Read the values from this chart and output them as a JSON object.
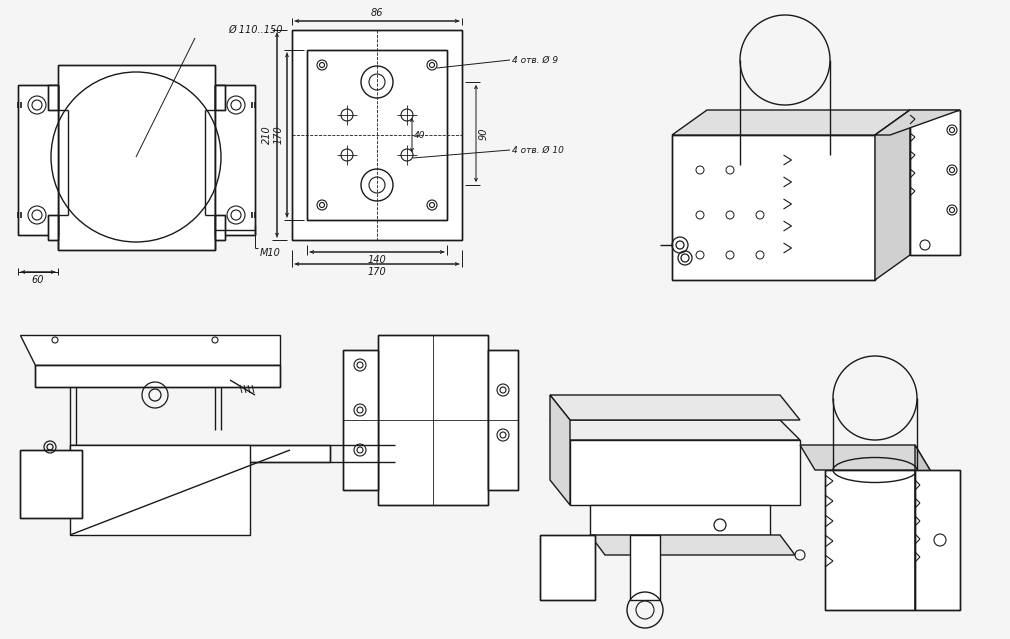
{
  "bg_color": "#f5f5f5",
  "line_color": "#1a1a1a",
  "lw": 1.0,
  "tlw": 0.6,
  "annotations": {
    "diameter": "Ø 110..150",
    "dim_60": "60",
    "dim_M10": "M10",
    "dim_86": "86",
    "dim_210": "210",
    "dim_170_h": "170",
    "dim_40": "40",
    "dim_90": "90",
    "dim_140": "140",
    "dim_170_w": "170",
    "holes_phi9": "4 отв. Ø 9",
    "holes_phi10": "4 отв. Ø 10"
  }
}
